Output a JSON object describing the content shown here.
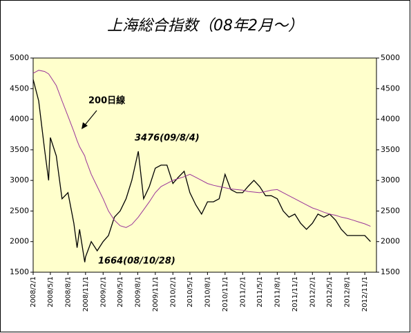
{
  "chart_data": {
    "type": "line",
    "title": "上海総合指数（08年2月～）",
    "x": [
      "2008/2/1",
      "2008/3/1",
      "2008/4/1",
      "2008/4/22",
      "2008/5/1",
      "2008/6/1",
      "2008/7/1",
      "2008/8/1",
      "2008/9/1",
      "2008/9/18",
      "2008/10/1",
      "2008/10/28",
      "2008/11/1",
      "2008/12/1",
      "2009/1/1",
      "2009/2/1",
      "2009/3/1",
      "2009/4/1",
      "2009/5/1",
      "2009/6/1",
      "2009/7/1",
      "2009/8/4",
      "2009/9/1",
      "2009/10/1",
      "2009/11/1",
      "2009/12/1",
      "2010/1/1",
      "2010/2/1",
      "2010/3/1",
      "2010/4/1",
      "2010/5/1",
      "2010/6/1",
      "2010/7/1",
      "2010/8/1",
      "2010/9/1",
      "2010/10/1",
      "2010/11/1",
      "2010/12/1",
      "2011/1/1",
      "2011/2/1",
      "2011/3/1",
      "2011/4/1",
      "2011/5/1",
      "2011/6/1",
      "2011/7/1",
      "2011/8/1",
      "2011/9/1",
      "2011/10/1",
      "2011/11/1",
      "2011/12/1",
      "2012/1/1",
      "2012/2/1",
      "2012/3/1",
      "2012/4/1",
      "2012/5/1",
      "2012/6/1",
      "2012/7/1",
      "2012/8/1",
      "2012/9/1",
      "2012/10/1",
      "2012/11/1",
      "2012/12/1"
    ],
    "series": [
      {
        "name": "上海総合指数",
        "color": "#000000",
        "values": [
          4650,
          4300,
          3500,
          3000,
          3700,
          3400,
          2700,
          2800,
          2300,
          1900,
          2200,
          1664,
          1750,
          2000,
          1850,
          2000,
          2100,
          2400,
          2500,
          2700,
          3000,
          3476,
          2700,
          2900,
          3200,
          3250,
          3250,
          2950,
          3050,
          3150,
          2800,
          2600,
          2450,
          2650,
          2650,
          2700,
          3100,
          2850,
          2800,
          2800,
          2900,
          3000,
          2900,
          2750,
          2750,
          2700,
          2500,
          2400,
          2450,
          2300,
          2200,
          2300,
          2450,
          2400,
          2450,
          2350,
          2200,
          2100,
          2100,
          2100,
          2100,
          2000
        ]
      },
      {
        "name": "200日線",
        "color": "#993399",
        "values": [
          4750,
          4800,
          4780,
          4740,
          4700,
          4550,
          4300,
          4050,
          3800,
          3650,
          3550,
          3400,
          3350,
          3100,
          2900,
          2700,
          2500,
          2350,
          2260,
          2230,
          2280,
          2400,
          2520,
          2650,
          2800,
          2900,
          2950,
          3000,
          3030,
          3060,
          3100,
          3050,
          3000,
          2950,
          2920,
          2900,
          2880,
          2860,
          2850,
          2840,
          2820,
          2810,
          2800,
          2820,
          2840,
          2850,
          2800,
          2750,
          2700,
          2650,
          2600,
          2550,
          2520,
          2480,
          2450,
          2430,
          2400,
          2380,
          2350,
          2320,
          2290,
          2250
        ]
      }
    ],
    "xlim": [
      "2008/2/1",
      "2013/1/1"
    ],
    "xticks": [
      "2008/2/1",
      "2008/5/1",
      "2008/8/1",
      "2008/11/1",
      "2009/2/1",
      "2009/5/1",
      "2009/8/1",
      "2009/11/1",
      "2010/2/1",
      "2010/5/1",
      "2010/8/1",
      "2010/11/1",
      "2011/2/1",
      "2011/5/1",
      "2011/8/1",
      "2011/11/1",
      "2012/2/1",
      "2012/5/1",
      "2012/8/1",
      "2012/11/1"
    ],
    "ylim": [
      1500,
      5000
    ],
    "yticks": [
      1500,
      2000,
      2500,
      3000,
      3500,
      4000,
      4500,
      5000
    ],
    "y2lim": [
      1500,
      5000
    ],
    "y2ticks": [
      1500,
      2000,
      2500,
      3000,
      3500,
      4000,
      4500,
      5000
    ],
    "grid": false,
    "plot_background": "#ffffcc",
    "annotations": [
      "200日線",
      "3476(09/8/4)",
      "1664(08/10/28)"
    ]
  }
}
